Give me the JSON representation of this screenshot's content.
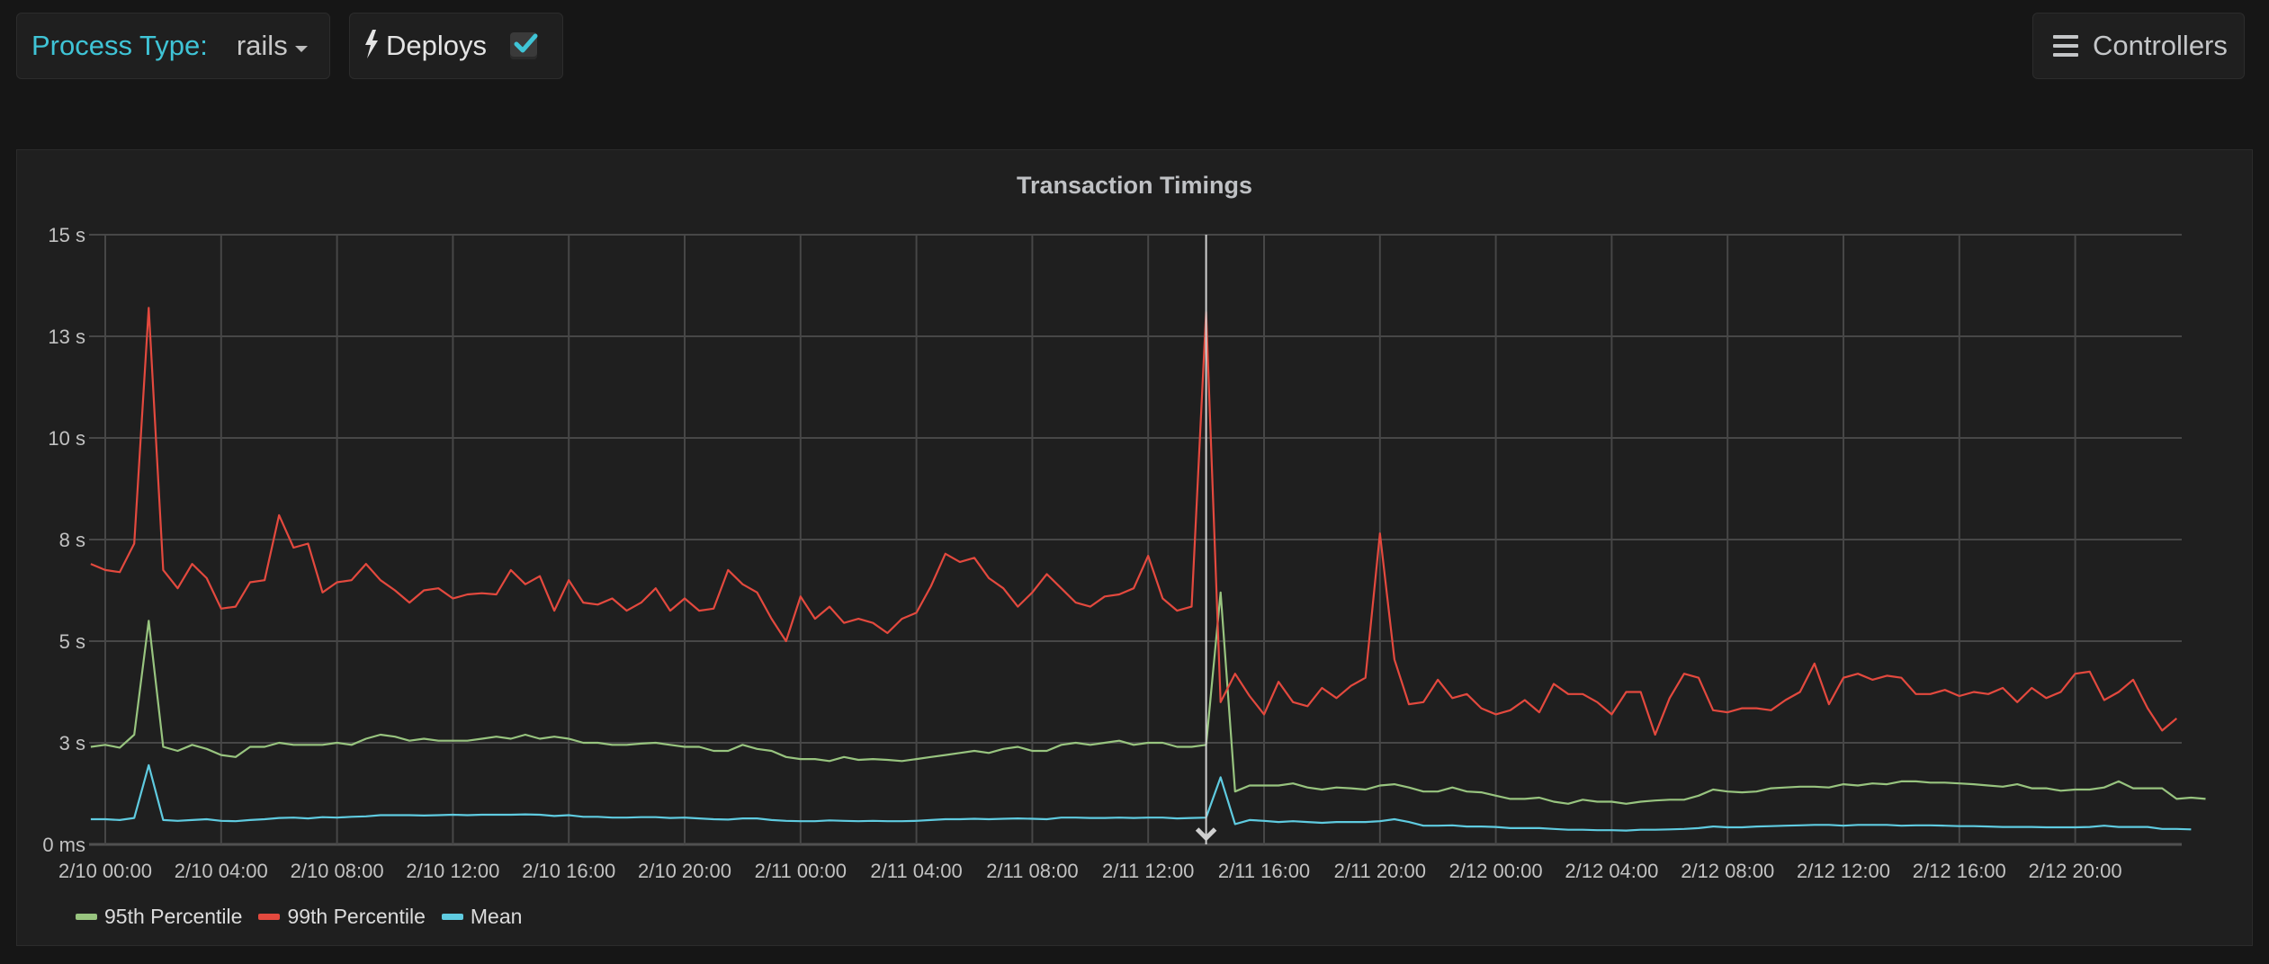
{
  "toolbar": {
    "process_type_label": "Process Type:",
    "process_type_value": "rails",
    "deploys_label": "Deploys",
    "deploys_checked": true,
    "controllers_label": "Controllers"
  },
  "icons": {
    "process_dropdown": "caret-down-icon",
    "deploys": "lightning-bolt-icon",
    "deploys_checkbox": "checkmark-icon",
    "controllers": "hamburger-menu-icon",
    "deploy_marker": "chevron-down-icon"
  },
  "colors": {
    "accent": "#3fc4d6",
    "p95": "#98c47f",
    "p99": "#e3493e",
    "mean": "#5fcbe0",
    "grid": "#4a4a4a",
    "deploy_marker": "#cfcfcf"
  },
  "chart_data": {
    "type": "line",
    "title": "Transaction Timings",
    "xlabel": "",
    "ylabel": "",
    "ylim": [
      0,
      15
    ],
    "y_unit": "s",
    "y_ticks": [
      {
        "value": 0,
        "label": "0 ms"
      },
      {
        "value": 2.5,
        "label": "3 s"
      },
      {
        "value": 5,
        "label": "5 s"
      },
      {
        "value": 7.5,
        "label": "8 s"
      },
      {
        "value": 10,
        "label": "10 s"
      },
      {
        "value": 12.5,
        "label": "13 s"
      },
      {
        "value": 15,
        "label": "15 s"
      }
    ],
    "x_ticks": [
      "2/10 00:00",
      "2/10 04:00",
      "2/10 08:00",
      "2/10 12:00",
      "2/10 16:00",
      "2/10 20:00",
      "2/11 00:00",
      "2/11 04:00",
      "2/11 08:00",
      "2/11 12:00",
      "2/11 16:00",
      "2/11 20:00",
      "2/12 00:00",
      "2/12 04:00",
      "2/12 08:00",
      "2/12 12:00",
      "2/12 16:00",
      "2/12 20:00"
    ],
    "x_start": "2/9 23:30",
    "x_interval_minutes": 30,
    "grid": true,
    "legend_position": "bottom-left",
    "deploy_markers": [
      "2/11 14:00"
    ],
    "series": [
      {
        "name": "95th Percentile",
        "color": "#98c47f",
        "values": [
          2.4,
          2.45,
          2.38,
          2.7,
          5.5,
          2.4,
          2.3,
          2.45,
          2.35,
          2.2,
          2.15,
          2.4,
          2.4,
          2.5,
          2.45,
          2.45,
          2.45,
          2.5,
          2.45,
          2.6,
          2.7,
          2.65,
          2.55,
          2.6,
          2.55,
          2.55,
          2.55,
          2.6,
          2.65,
          2.6,
          2.7,
          2.6,
          2.65,
          2.6,
          2.5,
          2.5,
          2.45,
          2.45,
          2.48,
          2.5,
          2.45,
          2.4,
          2.4,
          2.3,
          2.3,
          2.45,
          2.35,
          2.3,
          2.15,
          2.1,
          2.1,
          2.05,
          2.15,
          2.08,
          2.1,
          2.08,
          2.05,
          2.1,
          2.15,
          2.2,
          2.25,
          2.3,
          2.25,
          2.35,
          2.4,
          2.3,
          2.3,
          2.45,
          2.5,
          2.45,
          2.5,
          2.55,
          2.45,
          2.5,
          2.5,
          2.4,
          2.4,
          2.45,
          6.2,
          1.3,
          1.45,
          1.45,
          1.45,
          1.5,
          1.4,
          1.35,
          1.4,
          1.38,
          1.35,
          1.45,
          1.48,
          1.4,
          1.3,
          1.3,
          1.4,
          1.3,
          1.28,
          1.2,
          1.12,
          1.12,
          1.15,
          1.05,
          1.0,
          1.1,
          1.05,
          1.05,
          1.0,
          1.05,
          1.08,
          1.1,
          1.1,
          1.2,
          1.35,
          1.3,
          1.28,
          1.3,
          1.38,
          1.4,
          1.42,
          1.42,
          1.4,
          1.48,
          1.45,
          1.5,
          1.48,
          1.55,
          1.55,
          1.52,
          1.52,
          1.5,
          1.48,
          1.45,
          1.42,
          1.48,
          1.38,
          1.38,
          1.32,
          1.35,
          1.35,
          1.4,
          1.55,
          1.38,
          1.38,
          1.38,
          1.12,
          1.15,
          1.12
        ]
      },
      {
        "name": "99th Percentile",
        "color": "#e3493e",
        "values": [
          6.9,
          6.75,
          6.7,
          7.4,
          13.2,
          6.75,
          6.3,
          6.9,
          6.55,
          5.8,
          5.85,
          6.45,
          6.5,
          8.1,
          7.3,
          7.4,
          6.2,
          6.45,
          6.5,
          6.9,
          6.5,
          6.25,
          5.95,
          6.25,
          6.3,
          6.05,
          6.15,
          6.18,
          6.15,
          6.75,
          6.4,
          6.6,
          5.75,
          6.5,
          5.95,
          5.9,
          6.05,
          5.75,
          5.95,
          6.3,
          5.75,
          6.05,
          5.75,
          5.8,
          6.75,
          6.4,
          6.2,
          5.55,
          5.0,
          6.1,
          5.55,
          5.85,
          5.45,
          5.55,
          5.45,
          5.2,
          5.55,
          5.7,
          6.35,
          7.15,
          6.95,
          7.05,
          6.55,
          6.3,
          5.85,
          6.2,
          6.65,
          6.3,
          5.95,
          5.85,
          6.1,
          6.15,
          6.3,
          7.1,
          6.05,
          5.75,
          5.85,
          13.1,
          3.5,
          4.2,
          3.65,
          3.2,
          4.0,
          3.5,
          3.4,
          3.85,
          3.6,
          3.9,
          4.1,
          7.65,
          4.55,
          3.45,
          3.5,
          4.05,
          3.6,
          3.7,
          3.35,
          3.2,
          3.3,
          3.55,
          3.25,
          3.95,
          3.7,
          3.7,
          3.5,
          3.2,
          3.75,
          3.75,
          2.7,
          3.6,
          4.2,
          4.1,
          3.3,
          3.25,
          3.35,
          3.35,
          3.3,
          3.55,
          3.75,
          4.45,
          3.45,
          4.1,
          4.2,
          4.05,
          4.15,
          4.1,
          3.7,
          3.7,
          3.8,
          3.65,
          3.75,
          3.7,
          3.85,
          3.5,
          3.85,
          3.6,
          3.75,
          4.2,
          4.25,
          3.55,
          3.75,
          4.05,
          3.35,
          2.8,
          3.1
        ]
      },
      {
        "name": "Mean",
        "color": "#5fcbe0",
        "values": [
          0.62,
          0.62,
          0.6,
          0.65,
          1.95,
          0.6,
          0.58,
          0.6,
          0.62,
          0.58,
          0.57,
          0.6,
          0.62,
          0.65,
          0.66,
          0.64,
          0.67,
          0.66,
          0.68,
          0.69,
          0.72,
          0.72,
          0.72,
          0.71,
          0.72,
          0.73,
          0.72,
          0.73,
          0.73,
          0.73,
          0.74,
          0.73,
          0.7,
          0.72,
          0.68,
          0.68,
          0.66,
          0.66,
          0.67,
          0.67,
          0.65,
          0.66,
          0.64,
          0.62,
          0.61,
          0.64,
          0.64,
          0.6,
          0.58,
          0.57,
          0.57,
          0.59,
          0.58,
          0.57,
          0.58,
          0.57,
          0.57,
          0.58,
          0.6,
          0.62,
          0.62,
          0.63,
          0.62,
          0.63,
          0.64,
          0.63,
          0.62,
          0.66,
          0.66,
          0.65,
          0.65,
          0.66,
          0.65,
          0.66,
          0.66,
          0.64,
          0.65,
          0.66,
          1.65,
          0.5,
          0.6,
          0.58,
          0.55,
          0.57,
          0.55,
          0.53,
          0.55,
          0.55,
          0.55,
          0.57,
          0.62,
          0.55,
          0.46,
          0.46,
          0.47,
          0.44,
          0.44,
          0.43,
          0.4,
          0.4,
          0.4,
          0.38,
          0.36,
          0.36,
          0.35,
          0.35,
          0.34,
          0.36,
          0.36,
          0.37,
          0.38,
          0.4,
          0.44,
          0.42,
          0.42,
          0.44,
          0.45,
          0.46,
          0.47,
          0.48,
          0.48,
          0.46,
          0.48,
          0.48,
          0.48,
          0.46,
          0.47,
          0.47,
          0.46,
          0.45,
          0.45,
          0.44,
          0.43,
          0.43,
          0.43,
          0.42,
          0.42,
          0.42,
          0.43,
          0.46,
          0.43,
          0.43,
          0.43,
          0.38,
          0.38,
          0.37
        ]
      }
    ]
  }
}
